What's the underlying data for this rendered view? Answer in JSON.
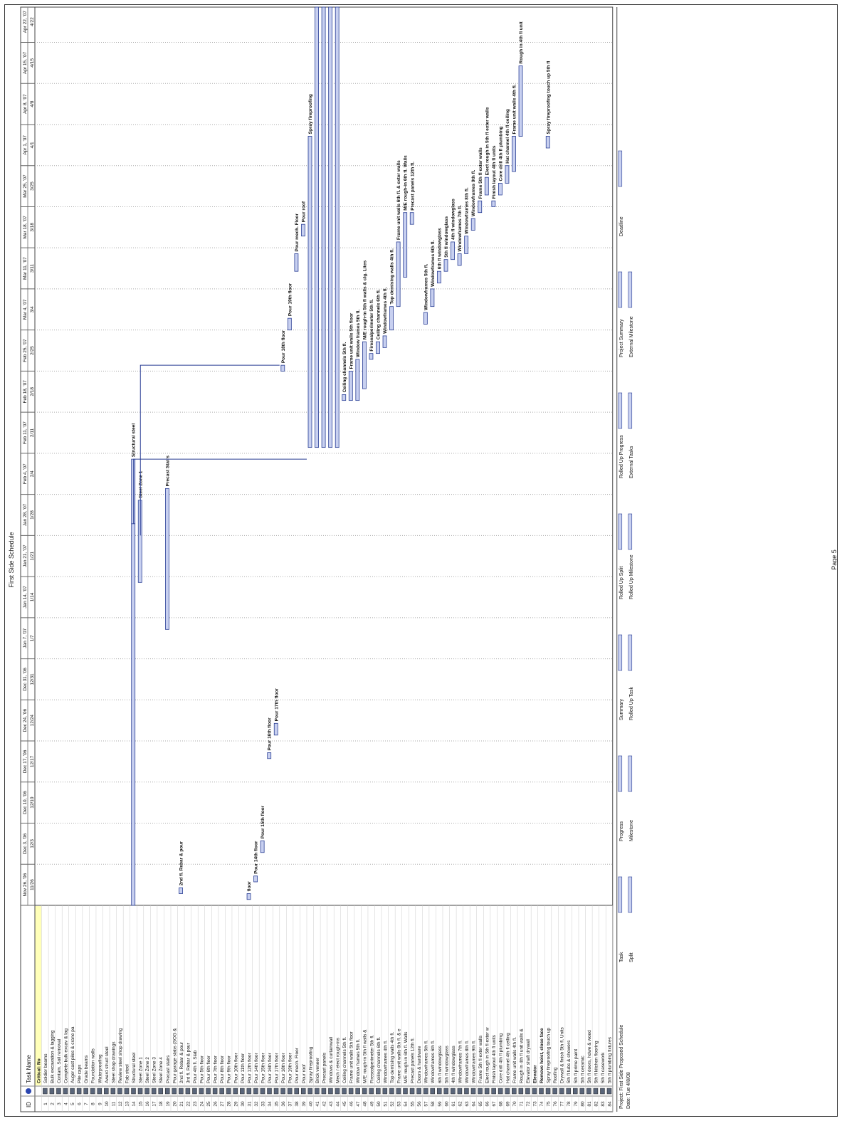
{
  "header": {
    "title": "First Side Schedule"
  },
  "footer": {
    "page": "Page 5",
    "project": "Project: First Side Proposed Schedule",
    "date": "Date: Tue 4/8/08"
  },
  "table": {
    "col_id": "ID",
    "col_name": "Task Name",
    "rows": [
      {
        "id": "",
        "name": "Critical: No",
        "bold": true,
        "highlight": true
      },
      {
        "id": "1",
        "name": "Soldier beams"
      },
      {
        "id": "2",
        "name": "Bulk excavation & lagging"
      },
      {
        "id": "3",
        "name": "Contam. Soil removal"
      },
      {
        "id": "4",
        "name": "Complete bulk excav & lag"
      },
      {
        "id": "5",
        "name": "Auger cast piles & crane pa"
      },
      {
        "id": "6",
        "name": "Pile caps"
      },
      {
        "id": "7",
        "name": "Grade beams"
      },
      {
        "id": "8",
        "name": "Foundation walls"
      },
      {
        "id": "9",
        "name": "Waterproofing"
      },
      {
        "id": "10",
        "name": "Award struct steel"
      },
      {
        "id": "11",
        "name": "Steel shop drawings"
      },
      {
        "id": "12",
        "name": "Review steel shop drawing"
      },
      {
        "id": "13",
        "name": "Fab steel"
      },
      {
        "id": "14",
        "name": "Structural steel"
      },
      {
        "id": "15",
        "name": "Steel Zone 1"
      },
      {
        "id": "16",
        "name": "Steel Zone 2"
      },
      {
        "id": "17",
        "name": "Steel Zone 3"
      },
      {
        "id": "18",
        "name": "Steel Zone 4"
      },
      {
        "id": "19",
        "name": "Precast stairs"
      },
      {
        "id": "20",
        "name": "Pour garage slabs (SOG &"
      },
      {
        "id": "21",
        "name": "2nd fl. Rebar & pour"
      },
      {
        "id": "22",
        "name": "3rd fl. Rebar & pour"
      },
      {
        "id": "23",
        "name": "Pour 4th fl. Slab"
      },
      {
        "id": "24",
        "name": "Pour 5th floor"
      },
      {
        "id": "25",
        "name": "Pour 6th floor"
      },
      {
        "id": "26",
        "name": "Pour 7th floor"
      },
      {
        "id": "27",
        "name": "Pour 8th floor"
      },
      {
        "id": "28",
        "name": "Pour 9th floor"
      },
      {
        "id": "29",
        "name": "Pour 10th floor"
      },
      {
        "id": "30",
        "name": "Pour 11th floor"
      },
      {
        "id": "31",
        "name": "Pour 12th floor"
      },
      {
        "id": "32",
        "name": "Pour 14th floor"
      },
      {
        "id": "33",
        "name": "Pour 15th floor"
      },
      {
        "id": "34",
        "name": "Pour 16th floor"
      },
      {
        "id": "35",
        "name": "Pour 17th floor"
      },
      {
        "id": "36",
        "name": "Pour 18th floor"
      },
      {
        "id": "37",
        "name": "Pour 19th floor"
      },
      {
        "id": "38",
        "name": "Pour mech. Floor"
      },
      {
        "id": "39",
        "name": "Pour roof"
      },
      {
        "id": "40",
        "name": "Spray fireproofing"
      },
      {
        "id": "41",
        "name": "Brick veneer"
      },
      {
        "id": "42",
        "name": "Precast panels"
      },
      {
        "id": "43",
        "name": "Windows & curtainwall"
      },
      {
        "id": "44",
        "name": "Mech / elect rough-ins"
      },
      {
        "id": "45",
        "name": "Ceiling channels 5th fl."
      },
      {
        "id": "46",
        "name": "Frame unit walls 5th floor"
      },
      {
        "id": "47",
        "name": "Window frames 5th fl."
      },
      {
        "id": "48",
        "name": "M/E rough-in 5th fl walls &"
      },
      {
        "id": "49",
        "name": "Firesealperimeter 5th fl."
      },
      {
        "id": "50",
        "name": "Ceiling channels 6th fl."
      },
      {
        "id": "51",
        "name": "Windowframes 4th fl."
      },
      {
        "id": "52",
        "name": "Top demising walls 4th fl."
      },
      {
        "id": "53",
        "name": "Frame unit walls 6th fl. & e"
      },
      {
        "id": "54",
        "name": "M/E rough-in 6th fl. Walls"
      },
      {
        "id": "55",
        "name": "Precast panels 12th fl."
      },
      {
        "id": "56",
        "name": "Doors & hardware"
      },
      {
        "id": "57",
        "name": "Windowframes 5th fl."
      },
      {
        "id": "58",
        "name": "Windowframes 6th fl."
      },
      {
        "id": "59",
        "name": "6th fl windowglass"
      },
      {
        "id": "60",
        "name": "5th fl windowglass"
      },
      {
        "id": "61",
        "name": "4th fl windowglass"
      },
      {
        "id": "62",
        "name": "Windowframes 7th fl."
      },
      {
        "id": "63",
        "name": "Windowframes 8th fl."
      },
      {
        "id": "64",
        "name": "Windowframes 9th fl."
      },
      {
        "id": "65",
        "name": "Frame 5th fl exter walls"
      },
      {
        "id": "66",
        "name": "Elect rough in 5th fl exter w"
      },
      {
        "id": "67",
        "name": "Finish layout 4th fl units"
      },
      {
        "id": "68",
        "name": "Core drill 4th fl plumbing"
      },
      {
        "id": "69",
        "name": "Hat channel 4th fl ceiling"
      },
      {
        "id": "70",
        "name": "Frame unit walls 4th fl."
      },
      {
        "id": "71",
        "name": "Rough in 4th fl unit walls &"
      },
      {
        "id": "72",
        "name": "Elevator shaft drywall"
      },
      {
        "id": "73",
        "name": "Elevator",
        "bold": true
      },
      {
        "id": "74",
        "name": "Remove hoist, close face",
        "bold": true
      },
      {
        "id": "75",
        "name": "Spray fireproofing touch up"
      },
      {
        "id": "76",
        "name": "Roofing"
      },
      {
        "id": "77",
        "name": "Drywall & finish 5th fl. Units"
      },
      {
        "id": "78",
        "name": "5th fl tubs & showers"
      },
      {
        "id": "79",
        "name": "5th fl prime paint"
      },
      {
        "id": "80",
        "name": "5th fl ceramic"
      },
      {
        "id": "81",
        "name": "5th fl doors, hdwe & wood"
      },
      {
        "id": "82",
        "name": "5th fl kitchen flooring"
      },
      {
        "id": "83",
        "name": "5th fl casework"
      },
      {
        "id": "84",
        "name": "5th fl plumbing fixtures"
      }
    ]
  },
  "timescale": [
    {
      "week": "Nov 26, '06",
      "day": "11/26"
    },
    {
      "week": "Dec 3, '06",
      "day": "12/3"
    },
    {
      "week": "Dec 10, '06",
      "day": "12/10"
    },
    {
      "week": "Dec 17, '06",
      "day": "12/17"
    },
    {
      "week": "Dec 24, '06",
      "day": "12/24"
    },
    {
      "week": "Dec 31, '06",
      "day": "12/31"
    },
    {
      "week": "Jan 7, '07",
      "day": "1/7"
    },
    {
      "week": "Jan 14, '07",
      "day": "1/14"
    },
    {
      "week": "Jan 21, '07",
      "day": "1/21"
    },
    {
      "week": "Jan 28, '07",
      "day": "1/28"
    },
    {
      "week": "Feb 4, '07",
      "day": "2/4"
    },
    {
      "week": "Feb 11, '07",
      "day": "2/11"
    },
    {
      "week": "Feb 18, '07",
      "day": "2/18"
    },
    {
      "week": "Feb 25, '07",
      "day": "2/25"
    },
    {
      "week": "Mar 4, '07",
      "day": "3/4"
    },
    {
      "week": "Mar 11, '07",
      "day": "3/11"
    },
    {
      "week": "Mar 18, '07",
      "day": "3/18"
    },
    {
      "week": "Mar 25, '07",
      "day": "3/25"
    },
    {
      "week": "Apr 1, '07",
      "day": "4/1"
    },
    {
      "week": "Apr 8, '07",
      "day": "4/8"
    },
    {
      "week": "Apr 15, '07",
      "day": "4/15"
    },
    {
      "week": "Apr 22, '07",
      "day": "4/22"
    }
  ],
  "legend": {
    "items": [
      "Task",
      "Split",
      "Progress",
      "Milestone",
      "Summary",
      "Rolled Up Task",
      "Rolled Up Split",
      "Rolled Up Milestone",
      "Rolled Up Progress",
      "External Tasks",
      "Project Summary",
      "External Milestone",
      "Deadline"
    ]
  },
  "chart_data": {
    "type": "gantt",
    "title": "First Side Schedule",
    "x_unit": "date",
    "xlim": [
      "2006-11-26",
      "2007-04-28"
    ],
    "tasks": [
      {
        "row": 14,
        "start": "2007-01-30",
        "end": "2007-02-10",
        "label": "Structural steel"
      },
      {
        "row": 15,
        "start": "2007-01-20",
        "end": "2007-02-03",
        "label": "Steel Zone 1"
      },
      {
        "row": 19,
        "start": "2007-01-12",
        "end": "2007-02-05",
        "label": "Precast Stairs"
      },
      {
        "row": 21,
        "start": "2006-11-28",
        "end": "2006-11-29",
        "label": "2nd fl. Rebar & pour"
      },
      {
        "row": 31,
        "start": "2006-11-27",
        "end": "2006-11-28",
        "label": "floor"
      },
      {
        "row": 32,
        "start": "2006-11-30",
        "end": "2006-12-01",
        "label": "Pour 14th floor"
      },
      {
        "row": 33,
        "start": "2006-12-05",
        "end": "2006-12-07",
        "label": "Pour 15th floor"
      },
      {
        "row": 34,
        "start": "2006-12-21",
        "end": "2006-12-22",
        "label": "Pour 16th floor"
      },
      {
        "row": 35,
        "start": "2006-12-25",
        "end": "2006-12-27",
        "label": "Pour 17th floor"
      },
      {
        "row": 36,
        "start": "2007-02-25",
        "end": "2007-02-26",
        "label": "Pour 18th floor"
      },
      {
        "row": 37,
        "start": "2007-03-04",
        "end": "2007-03-06",
        "label": "Pour 19th floor"
      },
      {
        "row": 38,
        "start": "2007-03-14",
        "end": "2007-03-17",
        "label": "Pour mech. Floor"
      },
      {
        "row": 39,
        "start": "2007-03-20",
        "end": "2007-03-22",
        "label": "Pour roof"
      },
      {
        "row": 40,
        "start": "2007-02-12",
        "end": "2007-04-06",
        "label": "Spray fireproofing"
      },
      {
        "row": 45,
        "start": "2007-02-20",
        "end": "2007-02-21",
        "label": "Ceiling channels 5th fl."
      },
      {
        "row": 46,
        "start": "2007-02-20",
        "end": "2007-02-25",
        "label": "Frame unit walls 5th floor"
      },
      {
        "row": 47,
        "start": "2007-02-20",
        "end": "2007-02-27",
        "label": "Window frames 5th fl."
      },
      {
        "row": 48,
        "start": "2007-02-22",
        "end": "2007-03-02",
        "label": "M/E rough-in 5th fl walls & clg. Lites"
      },
      {
        "row": 49,
        "start": "2007-02-27",
        "end": "2007-02-28",
        "label": "Firesealperimeter 5th fl."
      },
      {
        "row": 50,
        "start": "2007-02-28",
        "end": "2007-03-02",
        "label": "Ceiling channels 6th fl."
      },
      {
        "row": 51,
        "start": "2007-03-01",
        "end": "2007-03-03",
        "label": "Windowframes 4th fl."
      },
      {
        "row": 52,
        "start": "2007-03-04",
        "end": "2007-03-08",
        "label": "Top demising walls 4th fl."
      },
      {
        "row": 53,
        "start": "2007-03-08",
        "end": "2007-03-19",
        "label": "Frame unit walls 6th fl. & exter walls"
      },
      {
        "row": 54,
        "start": "2007-03-13",
        "end": "2007-03-24",
        "label": "M/E rough-in 6th fl. Walls"
      },
      {
        "row": 55,
        "start": "2007-03-22",
        "end": "2007-03-24",
        "label": "Precast panels 12th fl."
      },
      {
        "row": 57,
        "start": "2007-03-05",
        "end": "2007-03-07",
        "label": "Windowframes 5th fl."
      },
      {
        "row": 58,
        "start": "2007-03-08",
        "end": "2007-03-11",
        "label": "Windowframes 6th fl."
      },
      {
        "row": 59,
        "start": "2007-03-12",
        "end": "2007-03-14",
        "label": "6th fl windowglass"
      },
      {
        "row": 60,
        "start": "2007-03-14",
        "end": "2007-03-16",
        "label": "5th fl windowglass"
      },
      {
        "row": 61,
        "start": "2007-03-16",
        "end": "2007-03-19",
        "label": "4th fl windowglass"
      },
      {
        "row": 62,
        "start": "2007-03-15",
        "end": "2007-03-17",
        "label": "Windowframes 7th fl."
      },
      {
        "row": 63,
        "start": "2007-03-17",
        "end": "2007-03-20",
        "label": "Windowframes 8th fl."
      },
      {
        "row": 64,
        "start": "2007-03-21",
        "end": "2007-03-23",
        "label": "Windowframes 9th fl."
      },
      {
        "row": 65,
        "start": "2007-03-24",
        "end": "2007-03-26",
        "label": "Frame 5th fl exter walls"
      },
      {
        "row": 66,
        "start": "2007-03-27",
        "end": "2007-03-30",
        "label": "Elect rough in 5th fl exter walls"
      },
      {
        "row": 67,
        "start": "2007-03-25",
        "end": "2007-03-26",
        "label": "Finish layout 4th fl units"
      },
      {
        "row": 68,
        "start": "2007-03-27",
        "end": "2007-03-29",
        "label": "Core drill 4th fl plumbing"
      },
      {
        "row": 69,
        "start": "2007-03-29",
        "end": "2007-04-01",
        "label": "Hat channel 4th fl ceiling"
      },
      {
        "row": 70,
        "start": "2007-03-31",
        "end": "2007-04-06",
        "label": "Frame unit walls 4th fl."
      },
      {
        "row": 71,
        "start": "2007-04-06",
        "end": "2007-04-18",
        "label": "Rough in 4th fl unit"
      },
      {
        "row": 75,
        "start": "2007-04-04",
        "end": "2007-04-06",
        "label": "Spray fireproofing touch up 5th fl"
      }
    ]
  }
}
